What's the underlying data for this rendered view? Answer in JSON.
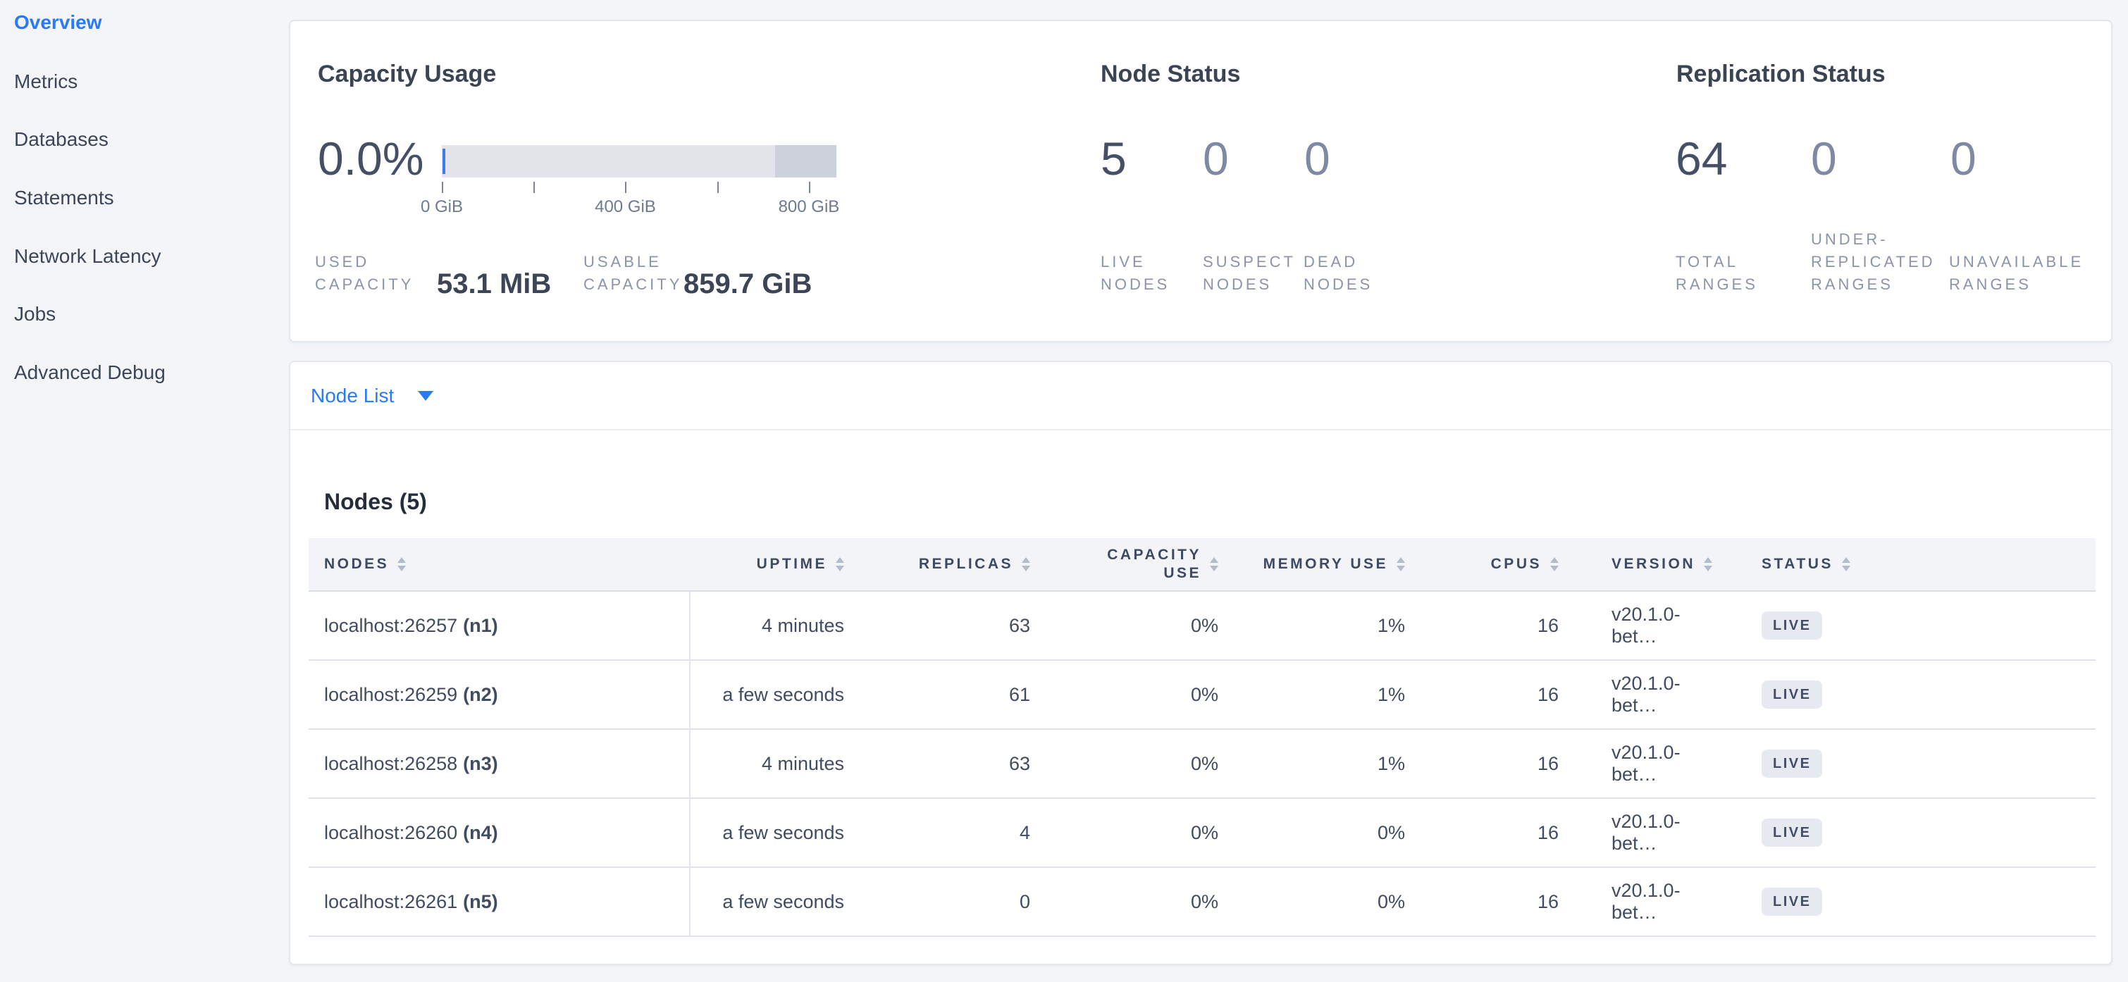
{
  "sidebar": {
    "items": [
      {
        "label": "Overview",
        "active": true
      },
      {
        "label": "Metrics",
        "active": false
      },
      {
        "label": "Databases",
        "active": false
      },
      {
        "label": "Statements",
        "active": false
      },
      {
        "label": "Network Latency",
        "active": false
      },
      {
        "label": "Jobs",
        "active": false
      },
      {
        "label": "Advanced Debug",
        "active": false
      }
    ]
  },
  "colors": {
    "accent_blue": "#2a7af5",
    "page_bg": "#f3f5f9",
    "bar_track": "#e3e5eb",
    "bar_reserved": "#ccd1dc",
    "bar_used": "#3d7ce8",
    "badge_bg": "#e7e9f1",
    "badge_text": "#434e66"
  },
  "cards": {
    "summary": {
      "capacity": {
        "title": "Capacity Usage",
        "percent": "0.0%",
        "bar": {
          "usable_gib": 860,
          "dark_from_gib": 726,
          "ticks": [
            {
              "gib": 0,
              "label": "0 GiB"
            },
            {
              "gib": 200,
              "label": ""
            },
            {
              "gib": 400,
              "label": "400 GiB"
            },
            {
              "gib": 600,
              "label": ""
            },
            {
              "gib": 800,
              "label": "800 GiB"
            }
          ]
        },
        "used": {
          "line1": "USED",
          "line2": "CAPACITY",
          "value": "53.1 MiB"
        },
        "usable": {
          "line1": "USABLE",
          "line2": "CAPACITY",
          "value": "859.7 GiB"
        }
      },
      "node_status": {
        "title": "Node Status",
        "live": {
          "value": "5",
          "line1": "LIVE",
          "line2": "NODES"
        },
        "suspect": {
          "value": "0",
          "line1": "SUSPECT",
          "line2": "NODES"
        },
        "dead": {
          "value": "0",
          "line1": "DEAD",
          "line2": "NODES"
        }
      },
      "replication": {
        "title": "Replication Status",
        "total": {
          "value": "64",
          "line1": "TOTAL",
          "line2": "RANGES"
        },
        "under": {
          "value": "0",
          "line1": "UNDER-",
          "line2": "REPLICATED",
          "line3": "RANGES"
        },
        "unavailable": {
          "value": "0",
          "line1": "UNAVAILABLE",
          "line2": "RANGES"
        }
      }
    },
    "nodes": {
      "view_selector": "Node List",
      "title": "Nodes (5)",
      "table": {
        "columns": [
          {
            "label": "NODES"
          },
          {
            "label": "UPTIME"
          },
          {
            "label": "REPLICAS"
          },
          {
            "label": "CAPACITY USE"
          },
          {
            "label": "MEMORY USE"
          },
          {
            "label": "CPUS"
          },
          {
            "label": "VERSION"
          },
          {
            "label": "STATUS"
          }
        ],
        "rows": [
          {
            "address": "localhost:26257",
            "node_id": "(n1)",
            "uptime": "4 minutes",
            "replicas": "63",
            "capacity_use": "0%",
            "memory_use": "1%",
            "cpus": "16",
            "version": "v20.1.0-bet…",
            "status": "LIVE"
          },
          {
            "address": "localhost:26259",
            "node_id": "(n2)",
            "uptime": "a few seconds",
            "replicas": "61",
            "capacity_use": "0%",
            "memory_use": "1%",
            "cpus": "16",
            "version": "v20.1.0-bet…",
            "status": "LIVE"
          },
          {
            "address": "localhost:26258",
            "node_id": "(n3)",
            "uptime": "4 minutes",
            "replicas": "63",
            "capacity_use": "0%",
            "memory_use": "1%",
            "cpus": "16",
            "version": "v20.1.0-bet…",
            "status": "LIVE"
          },
          {
            "address": "localhost:26260",
            "node_id": "(n4)",
            "uptime": "a few seconds",
            "replicas": "4",
            "capacity_use": "0%",
            "memory_use": "0%",
            "cpus": "16",
            "version": "v20.1.0-bet…",
            "status": "LIVE"
          },
          {
            "address": "localhost:26261",
            "node_id": "(n5)",
            "uptime": "a few seconds",
            "replicas": "0",
            "capacity_use": "0%",
            "memory_use": "0%",
            "cpus": "16",
            "version": "v20.1.0-bet…",
            "status": "LIVE"
          }
        ]
      }
    }
  }
}
